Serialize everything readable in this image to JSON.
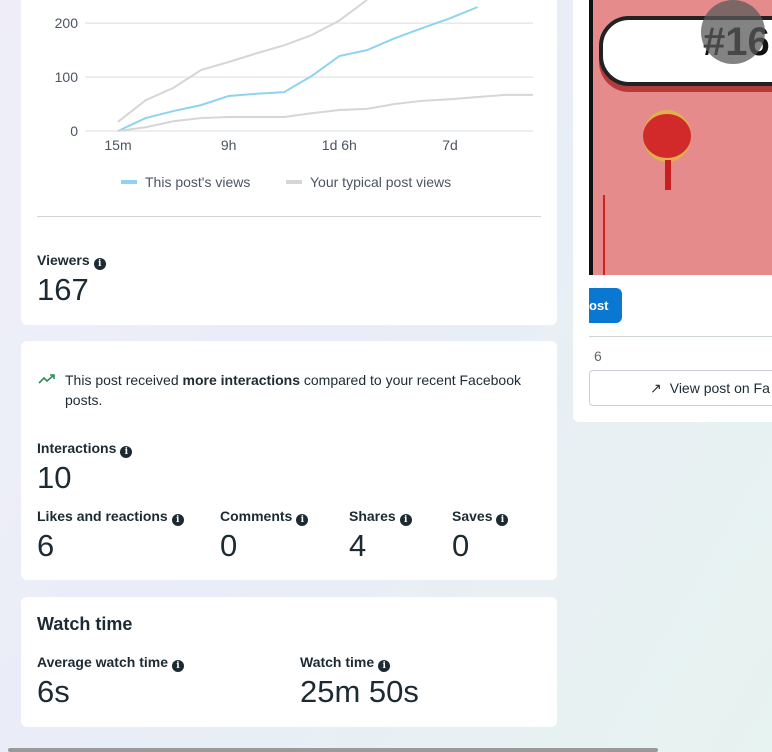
{
  "chart_data": {
    "type": "line",
    "categories": [
      "15m",
      null,
      null,
      null,
      "9h",
      null,
      null,
      null,
      "1d 6h",
      null,
      null,
      null,
      "7d",
      null,
      null,
      null
    ],
    "series": [
      {
        "name": "This post's views",
        "color": "#8fd3f0",
        "values": [
          0,
          24,
          37,
          48,
          65,
          69,
          72,
          102,
          139,
          150,
          172,
          191,
          209,
          230,
          null,
          null
        ]
      },
      {
        "name": "Your typical post views",
        "color": "#d6d6d6",
        "values": [
          17,
          57,
          80,
          113,
          128,
          144,
          159,
          178,
          205,
          243,
          null,
          null,
          null,
          null,
          null,
          null
        ],
        "low_values": [
          0,
          7,
          18,
          24,
          26,
          26,
          26,
          33,
          39,
          41,
          50,
          56,
          59,
          63,
          67,
          67
        ]
      }
    ],
    "ylim": [
      0,
      243
    ],
    "yticks": [
      0,
      100,
      200
    ],
    "grid": true
  },
  "viewers": {
    "label": "Viewers",
    "value": 167
  },
  "interactions": {
    "note_pre": "This post received ",
    "note_bold": "more interactions",
    "note_post": " compared to your recent Facebook posts.",
    "label": "Interactions",
    "value": 10,
    "breakdown": [
      {
        "label": "Likes and reactions",
        "value": 6
      },
      {
        "label": "Comments",
        "value": 0
      },
      {
        "label": "Shares",
        "value": 4
      },
      {
        "label": "Saves",
        "value": 0
      }
    ]
  },
  "watch_time": {
    "title": "Watch time",
    "metrics": [
      {
        "label": "Average watch time",
        "value": "6s"
      },
      {
        "label": "Watch time",
        "value": "25m 50s"
      }
    ]
  },
  "side_card": {
    "image_text": "#16",
    "button": "ost",
    "count": "6",
    "view_button": "View post on Fa"
  }
}
